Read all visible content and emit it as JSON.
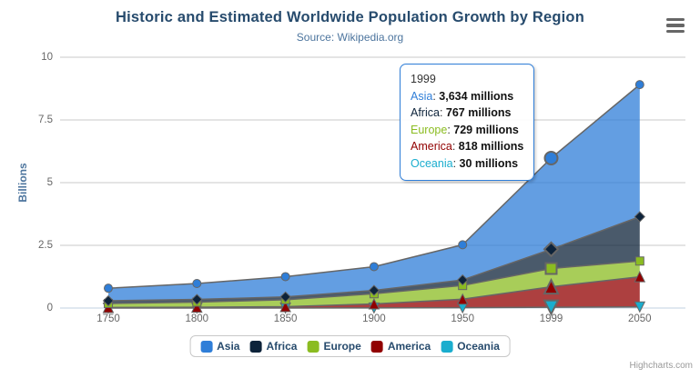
{
  "header": {
    "title": "Historic and Estimated Worldwide Population Growth by Region",
    "subtitle": "Source: Wikipedia.org"
  },
  "chart_data": {
    "type": "area",
    "stacking": "normal",
    "title": "Historic and Estimated Worldwide Population Growth by Region",
    "subtitle": "Source: Wikipedia.org",
    "xlabel": "",
    "ylabel": "Billions",
    "ylim": [
      0,
      10
    ],
    "y_ticks": [
      0,
      2.5,
      5,
      7.5,
      10
    ],
    "categories": [
      "1750",
      "1800",
      "1850",
      "1900",
      "1950",
      "1999",
      "2050"
    ],
    "units": "millions",
    "grid": true,
    "legend_position": "bottom",
    "hovered_category": "1999",
    "series": [
      {
        "name": "Asia",
        "color": "#2f7ed8",
        "marker": "circle",
        "values": [
          502,
          635,
          809,
          947,
          1402,
          3634,
          5268
        ]
      },
      {
        "name": "Africa",
        "color": "#0d233a",
        "marker": "diamond",
        "values": [
          106,
          107,
          111,
          133,
          221,
          767,
          1766
        ]
      },
      {
        "name": "Europe",
        "color": "#8bbc21",
        "marker": "square",
        "values": [
          163,
          203,
          276,
          408,
          547,
          729,
          628
        ]
      },
      {
        "name": "America",
        "color": "#910000",
        "marker": "triangle",
        "values": [
          18,
          31,
          54,
          156,
          339,
          818,
          1201
        ]
      },
      {
        "name": "Oceania",
        "color": "#1aadce",
        "marker": "triangle-down",
        "values": [
          2,
          2,
          2,
          6,
          13,
          30,
          46
        ]
      }
    ],
    "stack_order_bottom_to_top": [
      "Oceania",
      "America",
      "Europe",
      "Africa",
      "Asia"
    ]
  },
  "tooltip": {
    "header": "1999",
    "rows": [
      {
        "series": "Asia",
        "value": "3,634 millions"
      },
      {
        "series": "Africa",
        "value": "767 millions"
      },
      {
        "series": "Europe",
        "value": "729 millions"
      },
      {
        "series": "America",
        "value": "818 millions"
      },
      {
        "series": "Oceania",
        "value": "30 millions"
      }
    ]
  },
  "credits": {
    "label": "Highcharts.com"
  },
  "menu": {
    "icon": "hamburger-icon"
  },
  "palette": {
    "title_color": "#274b6d",
    "subtitle_color": "#4d759e",
    "axis_title_color": "#4d759e",
    "axis_label_color": "#666666",
    "grid_line_color": "#c8c8c8",
    "x_axis_line_color": "#c0d0e0",
    "series_line_color": "#666666",
    "marker_stroke_color": "#666666",
    "tooltip_border_color": "#2f7ed8",
    "legend_text_color": "#274b6d",
    "legend_border_color": "#c8c8c8",
    "credits_color": "#999999",
    "fill_opacity": 0.75
  }
}
